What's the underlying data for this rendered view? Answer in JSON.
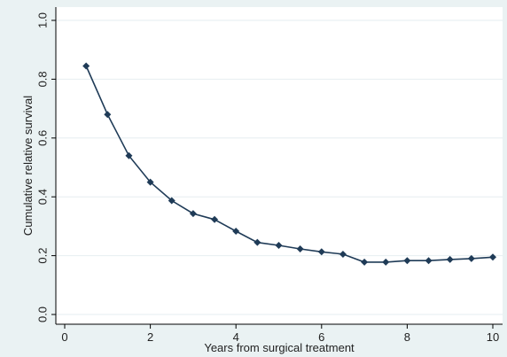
{
  "chart_data": {
    "type": "line",
    "title": "",
    "xlabel": "Years from surgical treatment",
    "ylabel": "Cumulative relative survival",
    "xlim": [
      0,
      10
    ],
    "ylim": [
      0,
      1
    ],
    "xticks": [
      0,
      2,
      4,
      6,
      8,
      10
    ],
    "xtick_labels": [
      "0",
      "2",
      "4",
      "6",
      "8",
      "10"
    ],
    "yticks": [
      0,
      0.2,
      0.4,
      0.6,
      0.8,
      1.0
    ],
    "ytick_labels": [
      "0.0",
      "0.2",
      "0.4",
      "0.6",
      "0.8",
      "1.0"
    ],
    "grid": "horizontal",
    "legend": "none",
    "series": [
      {
        "color": "#1f3b57",
        "marker": "diamond",
        "x": [
          0.5,
          1,
          1.5,
          2,
          2.5,
          3,
          3.5,
          4,
          4.5,
          5,
          5.5,
          6,
          6.5,
          7,
          7.5,
          8,
          8.5,
          9,
          9.5,
          10
        ],
        "y": [
          0.845,
          0.68,
          0.54,
          0.45,
          0.387,
          0.343,
          0.323,
          0.283,
          0.245,
          0.235,
          0.223,
          0.213,
          0.205,
          0.178,
          0.178,
          0.183,
          0.183,
          0.187,
          0.19,
          0.195
        ]
      }
    ],
    "colors": {
      "background": "#eaf2f3",
      "plot_area": "#ffffff",
      "grid": "#e6eef0",
      "axis": "#000000"
    }
  }
}
